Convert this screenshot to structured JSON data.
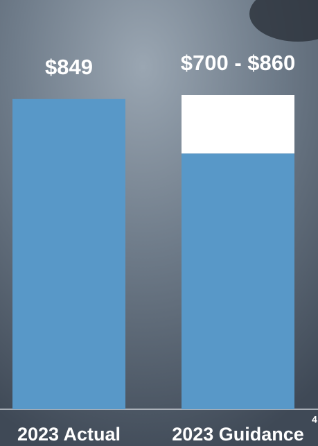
{
  "chart_data": {
    "type": "bar",
    "stacked": true,
    "categories": [
      "2023 Actual",
      "2023 Guidance"
    ],
    "series": [
      {
        "color": "#5898c8",
        "values": [
          849,
          700
        ]
      },
      {
        "color": "#ffffff",
        "values": [
          null,
          160
        ]
      }
    ],
    "value_labels": [
      "$849",
      "$700 - $860"
    ],
    "page_number": "4"
  }
}
